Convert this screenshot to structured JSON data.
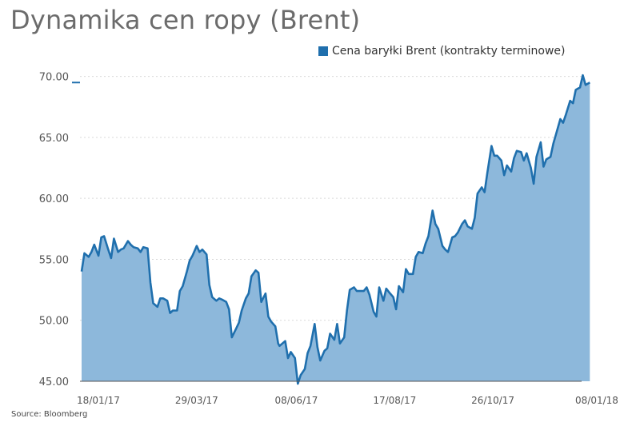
{
  "title": "Dynamika cen ropy (Brent)",
  "source": "Source: Bloomberg",
  "colors": {
    "line": "#1f6fad",
    "area": "#8db8db",
    "grid": "#d9d9d9",
    "legend": "#1f6fad"
  },
  "chart_data": {
    "type": "area",
    "title": "Dynamika cen ropy (Brent)",
    "xlabel": "",
    "ylabel": "",
    "ylim": [
      45,
      70.5
    ],
    "grid": true,
    "legend_position": "top-right",
    "yticks": [
      "70.00",
      "65.00",
      "60.00",
      "55.00",
      "50.00",
      "45.00"
    ],
    "ytick_values": [
      70,
      65,
      60,
      55,
      50,
      45
    ],
    "xticks": [
      {
        "label": "18/01/17",
        "x": "2017-01-18"
      },
      {
        "label": "29/03/17",
        "x": "2017-03-29"
      },
      {
        "label": "08/06/17",
        "x": "2017-06-08"
      },
      {
        "label": "17/08/17",
        "x": "2017-08-17"
      },
      {
        "label": "26/10/17",
        "x": "2017-10-26"
      },
      {
        "label": "08/01/18",
        "x": "2018-01-08"
      }
    ],
    "series": [
      {
        "name": "Cena baryłki Brent (kontrakty terminowe)",
        "points": [
          [
            "2017-01-18",
            54.0
          ],
          [
            "2017-01-20",
            55.5
          ],
          [
            "2017-01-23",
            55.2
          ],
          [
            "2017-01-25",
            55.6
          ],
          [
            "2017-01-27",
            56.2
          ],
          [
            "2017-01-30",
            55.3
          ],
          [
            "2017-02-01",
            56.8
          ],
          [
            "2017-02-03",
            56.9
          ],
          [
            "2017-02-06",
            55.8
          ],
          [
            "2017-02-08",
            55.1
          ],
          [
            "2017-02-10",
            56.7
          ],
          [
            "2017-02-13",
            55.6
          ],
          [
            "2017-02-15",
            55.8
          ],
          [
            "2017-02-17",
            55.9
          ],
          [
            "2017-02-20",
            56.5
          ],
          [
            "2017-02-22",
            56.2
          ],
          [
            "2017-02-24",
            56.0
          ],
          [
            "2017-02-27",
            55.9
          ],
          [
            "2017-03-01",
            55.6
          ],
          [
            "2017-03-03",
            56.0
          ],
          [
            "2017-03-06",
            55.9
          ],
          [
            "2017-03-08",
            53.1
          ],
          [
            "2017-03-10",
            51.4
          ],
          [
            "2017-03-13",
            51.1
          ],
          [
            "2017-03-15",
            51.8
          ],
          [
            "2017-03-17",
            51.8
          ],
          [
            "2017-03-20",
            51.6
          ],
          [
            "2017-03-22",
            50.6
          ],
          [
            "2017-03-24",
            50.8
          ],
          [
            "2017-03-27",
            50.8
          ],
          [
            "2017-03-29",
            52.4
          ],
          [
            "2017-03-31",
            52.8
          ],
          [
            "2017-04-03",
            54.0
          ],
          [
            "2017-04-05",
            54.9
          ],
          [
            "2017-04-07",
            55.3
          ],
          [
            "2017-04-10",
            56.1
          ],
          [
            "2017-04-12",
            55.6
          ],
          [
            "2017-04-14",
            55.8
          ],
          [
            "2017-04-17",
            55.4
          ],
          [
            "2017-04-19",
            52.9
          ],
          [
            "2017-04-21",
            51.9
          ],
          [
            "2017-04-24",
            51.6
          ],
          [
            "2017-04-26",
            51.8
          ],
          [
            "2017-04-28",
            51.7
          ],
          [
            "2017-05-01",
            51.5
          ],
          [
            "2017-05-03",
            50.9
          ],
          [
            "2017-05-05",
            48.6
          ],
          [
            "2017-05-08",
            49.3
          ],
          [
            "2017-05-10",
            49.8
          ],
          [
            "2017-05-12",
            50.8
          ],
          [
            "2017-05-15",
            51.8
          ],
          [
            "2017-05-17",
            52.2
          ],
          [
            "2017-05-19",
            53.6
          ],
          [
            "2017-05-22",
            54.1
          ],
          [
            "2017-05-24",
            53.9
          ],
          [
            "2017-05-26",
            51.5
          ],
          [
            "2017-05-29",
            52.2
          ],
          [
            "2017-05-31",
            50.3
          ],
          [
            "2017-06-02",
            49.9
          ],
          [
            "2017-06-05",
            49.5
          ],
          [
            "2017-06-07",
            48.1
          ],
          [
            "2017-06-08",
            47.9
          ],
          [
            "2017-06-12",
            48.3
          ],
          [
            "2017-06-14",
            46.9
          ],
          [
            "2017-06-16",
            47.4
          ],
          [
            "2017-06-19",
            46.9
          ],
          [
            "2017-06-21",
            44.8
          ],
          [
            "2017-06-23",
            45.5
          ],
          [
            "2017-06-26",
            46.0
          ],
          [
            "2017-06-28",
            47.3
          ],
          [
            "2017-06-30",
            47.9
          ],
          [
            "2017-07-03",
            49.7
          ],
          [
            "2017-07-05",
            47.8
          ],
          [
            "2017-07-07",
            46.7
          ],
          [
            "2017-07-10",
            47.5
          ],
          [
            "2017-07-12",
            47.7
          ],
          [
            "2017-07-14",
            48.9
          ],
          [
            "2017-07-17",
            48.4
          ],
          [
            "2017-07-19",
            49.7
          ],
          [
            "2017-07-21",
            48.1
          ],
          [
            "2017-07-24",
            48.6
          ],
          [
            "2017-07-26",
            50.8
          ],
          [
            "2017-07-28",
            52.5
          ],
          [
            "2017-07-31",
            52.7
          ],
          [
            "2017-08-02",
            52.4
          ],
          [
            "2017-08-04",
            52.4
          ],
          [
            "2017-08-07",
            52.4
          ],
          [
            "2017-08-09",
            52.7
          ],
          [
            "2017-08-11",
            52.1
          ],
          [
            "2017-08-14",
            50.7
          ],
          [
            "2017-08-16",
            50.3
          ],
          [
            "2017-08-18",
            52.7
          ],
          [
            "2017-08-21",
            51.6
          ],
          [
            "2017-08-23",
            52.6
          ],
          [
            "2017-08-25",
            52.3
          ],
          [
            "2017-08-28",
            51.9
          ],
          [
            "2017-08-30",
            50.9
          ],
          [
            "2017-09-01",
            52.8
          ],
          [
            "2017-09-04",
            52.3
          ],
          [
            "2017-09-06",
            54.2
          ],
          [
            "2017-09-08",
            53.8
          ],
          [
            "2017-09-11",
            53.8
          ],
          [
            "2017-09-13",
            55.2
          ],
          [
            "2017-09-15",
            55.6
          ],
          [
            "2017-09-18",
            55.5
          ],
          [
            "2017-09-20",
            56.3
          ],
          [
            "2017-09-22",
            56.9
          ],
          [
            "2017-09-25",
            59.0
          ],
          [
            "2017-09-27",
            57.9
          ],
          [
            "2017-09-29",
            57.5
          ],
          [
            "2017-10-02",
            56.1
          ],
          [
            "2017-10-04",
            55.8
          ],
          [
            "2017-10-06",
            55.6
          ],
          [
            "2017-10-09",
            56.8
          ],
          [
            "2017-10-11",
            56.9
          ],
          [
            "2017-10-13",
            57.2
          ],
          [
            "2017-10-16",
            57.9
          ],
          [
            "2017-10-18",
            58.2
          ],
          [
            "2017-10-20",
            57.7
          ],
          [
            "2017-10-23",
            57.5
          ],
          [
            "2017-10-25",
            58.4
          ],
          [
            "2017-10-27",
            60.4
          ],
          [
            "2017-10-30",
            60.9
          ],
          [
            "2017-11-01",
            60.5
          ],
          [
            "2017-11-03",
            62.1
          ],
          [
            "2017-11-06",
            64.3
          ],
          [
            "2017-11-08",
            63.5
          ],
          [
            "2017-11-10",
            63.5
          ],
          [
            "2017-11-13",
            63.1
          ],
          [
            "2017-11-15",
            61.9
          ],
          [
            "2017-11-17",
            62.7
          ],
          [
            "2017-11-20",
            62.2
          ],
          [
            "2017-11-22",
            63.3
          ],
          [
            "2017-11-24",
            63.9
          ],
          [
            "2017-11-27",
            63.8
          ],
          [
            "2017-11-29",
            63.1
          ],
          [
            "2017-12-01",
            63.7
          ],
          [
            "2017-12-04",
            62.5
          ],
          [
            "2017-12-06",
            61.2
          ],
          [
            "2017-12-08",
            63.4
          ],
          [
            "2017-12-11",
            64.6
          ],
          [
            "2017-12-13",
            62.6
          ],
          [
            "2017-12-15",
            63.2
          ],
          [
            "2017-12-18",
            63.4
          ],
          [
            "2017-12-20",
            64.5
          ],
          [
            "2017-12-22",
            65.3
          ],
          [
            "2017-12-25",
            66.5
          ],
          [
            "2017-12-27",
            66.2
          ],
          [
            "2017-12-29",
            66.9
          ],
          [
            "2018-01-01",
            68.0
          ],
          [
            "2018-01-03",
            67.8
          ],
          [
            "2018-01-05",
            68.9
          ],
          [
            "2018-01-08",
            69.1
          ],
          [
            "2018-01-10",
            70.1
          ],
          [
            "2018-01-12",
            69.3
          ],
          [
            "2018-01-15",
            69.5
          ]
        ]
      }
    ]
  }
}
